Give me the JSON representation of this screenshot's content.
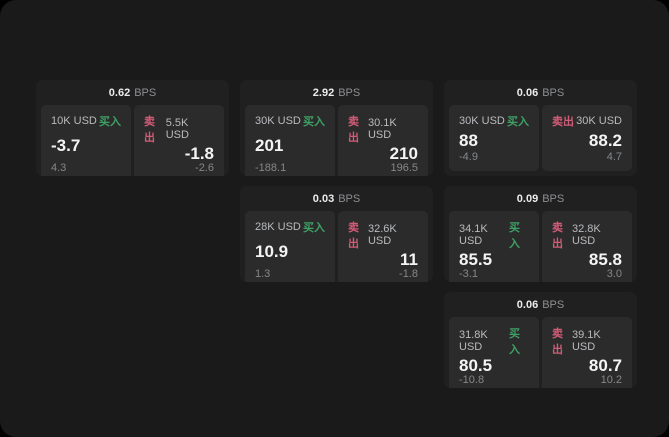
{
  "labels": {
    "bps": "BPS",
    "buy": "买入",
    "sell": "卖出"
  },
  "colors": {
    "buy": "#3fa066",
    "sell": "#d15c77",
    "screen_bg": "#1a1a1a",
    "card_bg": "#202020",
    "panel_bg": "#2b2b2b"
  },
  "cards": [
    {
      "bps": "0.62",
      "buy": {
        "amount": "10K USD",
        "price": "-3.7",
        "delta": "4.3"
      },
      "sell": {
        "amount": "5.5K USD",
        "price": "-1.8",
        "delta": "-2.6"
      }
    },
    {
      "bps": "2.92",
      "buy": {
        "amount": "30K USD",
        "price": "201",
        "delta": "-188.1"
      },
      "sell": {
        "amount": "30.1K USD",
        "price": "210",
        "delta": "196.5"
      }
    },
    {
      "bps": "0.06",
      "buy": {
        "amount": "30K USD",
        "price": "88",
        "delta": "-4.9"
      },
      "sell": {
        "amount": "30K USD",
        "price": "88.2",
        "delta": "4.7"
      }
    },
    {
      "bps": "0.03",
      "buy": {
        "amount": "28K USD",
        "price": "10.9",
        "delta": "1.3"
      },
      "sell": {
        "amount": "32.6K USD",
        "price": "11",
        "delta": "-1.8"
      }
    },
    {
      "bps": "0.09",
      "buy": {
        "amount": "34.1K USD",
        "price": "85.5",
        "delta": "-3.1"
      },
      "sell": {
        "amount": "32.8K USD",
        "price": "85.8",
        "delta": "3.0"
      }
    },
    {
      "bps": "0.06",
      "buy": {
        "amount": "31.8K USD",
        "price": "80.5",
        "delta": "-10.8"
      },
      "sell": {
        "amount": "39.1K USD",
        "price": "80.7",
        "delta": "10.2"
      }
    }
  ]
}
